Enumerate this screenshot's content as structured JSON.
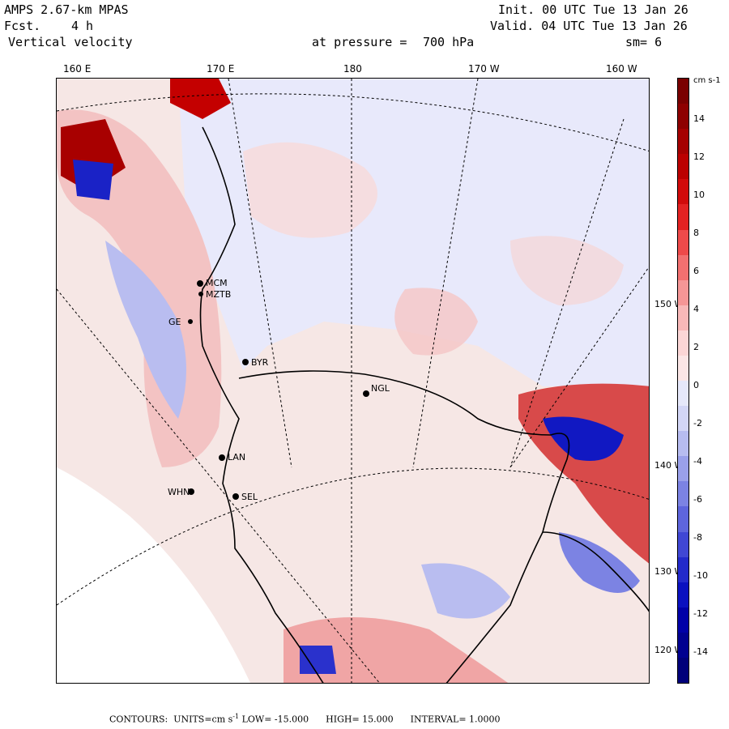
{
  "header": {
    "model": "AMPS 2.67-km MPAS",
    "fcst_label": "Fcst.",
    "fcst_value": "4 h",
    "field": "Vertical velocity",
    "init": "Init. 00 UTC Tue 13 Jan 26",
    "valid": "Valid. 04 UTC Tue 13 Jan 26",
    "pressure_label": "at pressure =",
    "pressure_value": "700 hPa",
    "smoothing": "sm= 6"
  },
  "longitude_labels": [
    "160 E",
    "170 E",
    "180",
    "170 W",
    "160 W"
  ],
  "latitude_labels_right": [
    "150 W",
    "140 W",
    "130 W",
    "120 W"
  ],
  "stations": [
    {
      "id": "MCM",
      "label": "MCM"
    },
    {
      "id": "MZTB",
      "label": "MZTB"
    },
    {
      "id": "GE",
      "label": "GE"
    },
    {
      "id": "BYR",
      "label": "BYR"
    },
    {
      "id": "NGL",
      "label": "NGL"
    },
    {
      "id": "LAN",
      "label": "LAN"
    },
    {
      "id": "WHN",
      "label": "WHN"
    },
    {
      "id": "SEL",
      "label": "SEL"
    }
  ],
  "colorbar": {
    "unit_text": "cm s-1",
    "ticks": [
      "14",
      "12",
      "10",
      "8",
      "6",
      "4",
      "2",
      "0",
      "-2",
      "-4",
      "-6",
      "-8",
      "-10",
      "-12",
      "-14"
    ],
    "colors": [
      "#7a0000",
      "#8e0000",
      "#a50000",
      "#bb0000",
      "#d10a0a",
      "#e32222",
      "#ee4a4a",
      "#f27070",
      "#f59696",
      "#f8b8b8",
      "#fbd6d6",
      "#fbe6e6",
      "#e6e8fa",
      "#d3d6f6",
      "#b7bcf0",
      "#9aa0ea",
      "#7c83e3",
      "#5e65dc",
      "#4047d4",
      "#232acb",
      "#0a11c0",
      "#0000a8",
      "#000090",
      "#00007a"
    ]
  },
  "footer": {
    "contours_label": "CONTOURS:",
    "units_label": "UNITS=cm s",
    "units_exp": "-1",
    "low": "LOW= -15.000",
    "high": "HIGH= 15.000",
    "interval": "INTERVAL= 1.0000"
  }
}
